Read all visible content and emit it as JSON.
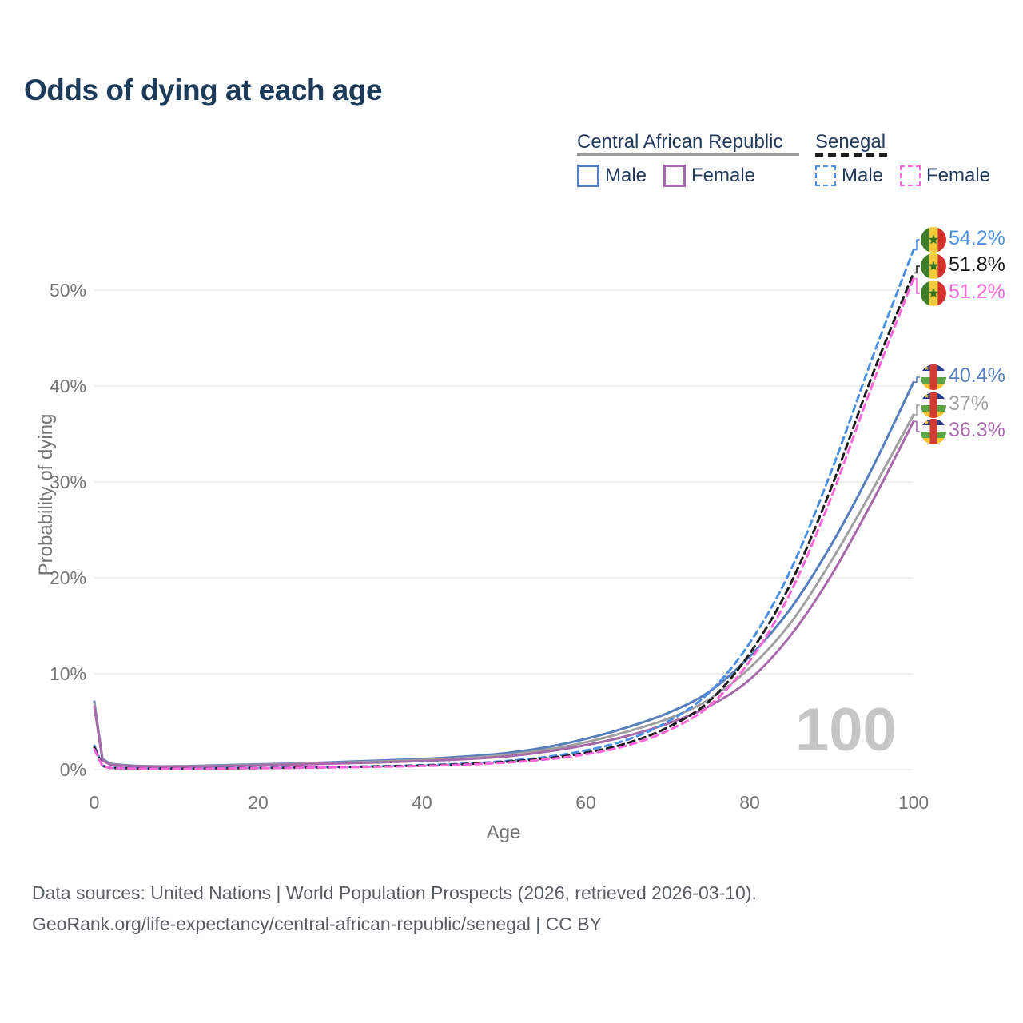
{
  "title": "Odds of dying at each age",
  "watermark": "100",
  "footer": {
    "line1": "Data sources: United Nations | World Population Prospects (2026, retrieved 2026-03-10).",
    "line2": "GeoRank.org/life-expectancy/central-african-republic/senegal | CC BY"
  },
  "colors": {
    "title_text": "#1c3b5a",
    "legend_text": "#22395c",
    "axis_text": "#757575",
    "gridline": "#e4e4e4",
    "watermark_text": "#c6c6c6",
    "footer_text": "#575c61"
  },
  "flags": {
    "senegal": {
      "green": "#3f7d2b",
      "yellow": "#f3ca3c",
      "red": "#d3312c",
      "star": "#3a7427"
    },
    "car": {
      "blue": "#2b3f91",
      "white": "#f5f5f5",
      "green": "#5da245",
      "yellow": "#f4c431",
      "red": "#d23a32",
      "star": "#f4c431"
    }
  },
  "legend": {
    "groups": [
      {
        "label": "Central African Republic",
        "underline_style": "solid",
        "underline_color": "#9e9e9e",
        "items": [
          {
            "label": "Male",
            "color": "#567ebc",
            "dashed": false
          },
          {
            "label": "Female",
            "color": "#a869ab",
            "dashed": false
          }
        ]
      },
      {
        "label": "Senegal",
        "underline_style": "dashed",
        "underline_color": "#1c1c1c",
        "items": [
          {
            "label": "Male",
            "color": "#4a90e2",
            "dashed": true
          },
          {
            "label": "Female",
            "color": "#ff66d9",
            "dashed": true
          }
        ]
      }
    ]
  },
  "chart_data": {
    "type": "line",
    "title": "Odds of dying at each age",
    "xlabel": "Age",
    "ylabel": "Probability of dying",
    "xlim": [
      0,
      100
    ],
    "ylim": [
      0,
      57
    ],
    "x_ticks": [
      {
        "value": 0,
        "label": "0"
      },
      {
        "value": 20,
        "label": "20"
      },
      {
        "value": 40,
        "label": "40"
      },
      {
        "value": 60,
        "label": "60"
      },
      {
        "value": 80,
        "label": "80"
      },
      {
        "value": 100,
        "label": "100"
      }
    ],
    "y_ticks": [
      {
        "value": 0,
        "label": "0%"
      },
      {
        "value": 10,
        "label": "10%"
      },
      {
        "value": 20,
        "label": "20%"
      },
      {
        "value": 30,
        "label": "30%"
      },
      {
        "value": 40,
        "label": "40%"
      },
      {
        "value": 50,
        "label": "50%"
      }
    ],
    "grid": true,
    "legend_position": "top-right",
    "x": [
      0,
      1,
      2,
      5,
      10,
      15,
      20,
      25,
      30,
      35,
      40,
      45,
      50,
      55,
      60,
      65,
      70,
      75,
      80,
      85,
      90,
      95,
      100
    ],
    "series": [
      {
        "id": "car-male",
        "country": "Central African Republic",
        "sex": "male",
        "color": "#567ebc",
        "dashed": false,
        "flag": "car",
        "end_label": "40.4%",
        "values": [
          7.1,
          1.1,
          0.6,
          0.4,
          0.35,
          0.45,
          0.55,
          0.65,
          0.8,
          0.95,
          1.1,
          1.35,
          1.7,
          2.3,
          3.2,
          4.4,
          5.9,
          8.1,
          11.8,
          16.8,
          23.5,
          31.5,
          40.4
        ]
      },
      {
        "id": "car-both",
        "country": "Central African Republic",
        "sex": "both",
        "color": "#a0a0a0",
        "dashed": false,
        "flag": "car",
        "end_label": "37%",
        "values": [
          6.9,
          1.0,
          0.55,
          0.37,
          0.32,
          0.4,
          0.5,
          0.6,
          0.72,
          0.86,
          1.0,
          1.2,
          1.5,
          2.05,
          2.85,
          3.95,
          5.3,
          7.3,
          10.6,
          15.3,
          21.8,
          29.2,
          37.0
        ]
      },
      {
        "id": "car-female",
        "country": "Central African Republic",
        "sex": "female",
        "color": "#a869ab",
        "dashed": false,
        "flag": "car",
        "end_label": "36.3%",
        "values": [
          6.6,
          0.95,
          0.5,
          0.34,
          0.3,
          0.36,
          0.44,
          0.54,
          0.64,
          0.76,
          0.9,
          1.08,
          1.35,
          1.85,
          2.55,
          3.5,
          4.8,
          6.6,
          9.4,
          14.0,
          20.3,
          28.0,
          36.3
        ]
      },
      {
        "id": "senegal-male",
        "country": "Senegal",
        "sex": "male",
        "color": "#4a90e2",
        "dashed": true,
        "flag": "senegal",
        "end_label": "54.2%",
        "values": [
          2.5,
          0.4,
          0.2,
          0.13,
          0.11,
          0.14,
          0.18,
          0.23,
          0.28,
          0.36,
          0.46,
          0.62,
          0.88,
          1.3,
          2.0,
          3.1,
          5.0,
          8.0,
          13.2,
          20.8,
          31.2,
          43.0,
          54.2
        ]
      },
      {
        "id": "senegal-both",
        "country": "Senegal",
        "sex": "both",
        "color": "#1c1c1c",
        "dashed": true,
        "flag": "senegal",
        "end_label": "51.8%",
        "values": [
          2.3,
          0.37,
          0.18,
          0.12,
          0.1,
          0.13,
          0.16,
          0.21,
          0.26,
          0.33,
          0.42,
          0.56,
          0.8,
          1.15,
          1.75,
          2.75,
          4.4,
          7.1,
          12.1,
          19.4,
          29.5,
          41.2,
          51.8
        ]
      },
      {
        "id": "senegal-female",
        "country": "Senegal",
        "sex": "female",
        "color": "#ff66d9",
        "dashed": true,
        "flag": "senegal",
        "end_label": "51.2%",
        "values": [
          2.1,
          0.34,
          0.17,
          0.11,
          0.09,
          0.12,
          0.15,
          0.19,
          0.24,
          0.3,
          0.38,
          0.51,
          0.72,
          1.05,
          1.6,
          2.5,
          4.05,
          6.6,
          11.3,
          18.5,
          28.5,
          40.2,
          51.2
        ]
      }
    ]
  }
}
